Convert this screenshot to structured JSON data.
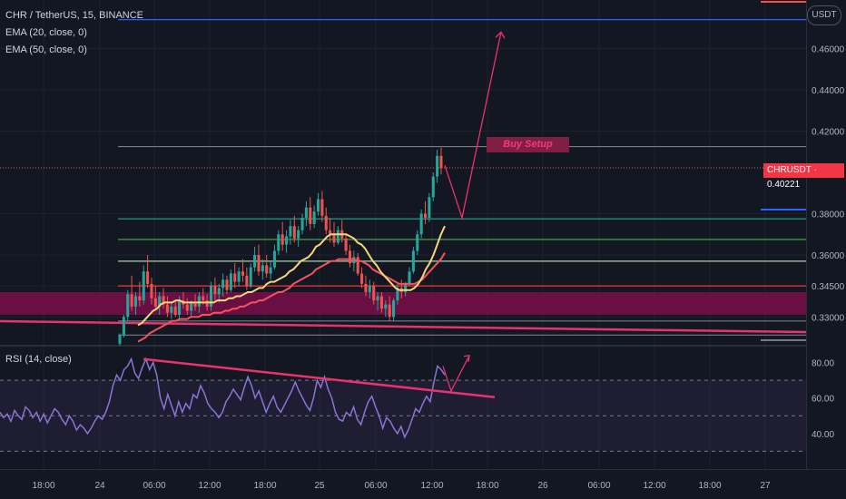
{
  "header": {
    "symbol_line": "CHR / TetherUS, 15, BINANCE",
    "ema20": "EMA (20, close, 0)",
    "ema50": "EMA (50, close, 0)",
    "rsi_label": "RSI (14, close)",
    "currency": "USDT",
    "price_tag": "CHRUSDT · 0.40221",
    "annotation": "Buy Setup"
  },
  "colors": {
    "background": "#131722",
    "bull": "#26a69a",
    "bear": "#ef5350",
    "ema20": "#f7d67a",
    "ema50": "#f7525f",
    "rsi": "#8a74d6",
    "annotation": "#e8336e",
    "level_blue": "#2962ff",
    "level_teal": "#22ab94",
    "level_green": "#4caf50",
    "level_red": "#f23645",
    "zone": "#880e4f"
  },
  "chart_data": [
    {
      "type": "candlestick",
      "title": "CHR / TetherUS, 15, BINANCE",
      "ylim": [
        0.3165,
        0.4835
      ],
      "y_ticks": [
        "0.46000",
        "0.44000",
        "0.42000",
        "0.40221",
        "0.38000",
        "0.36000",
        "0.34500",
        "0.33000"
      ],
      "x_ticks": [
        "18:00",
        "24",
        "06:00",
        "12:00",
        "18:00",
        "25",
        "06:00",
        "12:00",
        "18:00",
        "26",
        "06:00",
        "12:00",
        "18:00",
        "27"
      ],
      "last_price": 0.40221,
      "candles_ohlc": [
        [
          0.317,
          0.322,
          0.316,
          0.321
        ],
        [
          0.321,
          0.331,
          0.32,
          0.33
        ],
        [
          0.33,
          0.343,
          0.328,
          0.341
        ],
        [
          0.341,
          0.35,
          0.333,
          0.335
        ],
        [
          0.335,
          0.342,
          0.331,
          0.34
        ],
        [
          0.34,
          0.347,
          0.335,
          0.338
        ],
        [
          0.338,
          0.355,
          0.336,
          0.352
        ],
        [
          0.352,
          0.36,
          0.344,
          0.346
        ],
        [
          0.346,
          0.349,
          0.336,
          0.339
        ],
        [
          0.339,
          0.345,
          0.333,
          0.335
        ],
        [
          0.335,
          0.342,
          0.331,
          0.34
        ],
        [
          0.34,
          0.344,
          0.334,
          0.336
        ],
        [
          0.336,
          0.34,
          0.33,
          0.332
        ],
        [
          0.332,
          0.337,
          0.329,
          0.335
        ],
        [
          0.335,
          0.338,
          0.33,
          0.331
        ],
        [
          0.331,
          0.34,
          0.329,
          0.338
        ],
        [
          0.338,
          0.342,
          0.334,
          0.336
        ],
        [
          0.336,
          0.339,
          0.331,
          0.333
        ],
        [
          0.333,
          0.338,
          0.33,
          0.337
        ],
        [
          0.337,
          0.341,
          0.333,
          0.335
        ],
        [
          0.335,
          0.342,
          0.332,
          0.34
        ],
        [
          0.34,
          0.344,
          0.336,
          0.338
        ],
        [
          0.338,
          0.341,
          0.333,
          0.335
        ],
        [
          0.335,
          0.347,
          0.333,
          0.345
        ],
        [
          0.345,
          0.349,
          0.338,
          0.341
        ],
        [
          0.341,
          0.346,
          0.337,
          0.344
        ],
        [
          0.344,
          0.351,
          0.34,
          0.348
        ],
        [
          0.348,
          0.35,
          0.341,
          0.343
        ],
        [
          0.343,
          0.353,
          0.342,
          0.351
        ],
        [
          0.351,
          0.356,
          0.344,
          0.347
        ],
        [
          0.347,
          0.354,
          0.345,
          0.352
        ],
        [
          0.352,
          0.358,
          0.347,
          0.35
        ],
        [
          0.35,
          0.354,
          0.343,
          0.345
        ],
        [
          0.345,
          0.356,
          0.344,
          0.354
        ],
        [
          0.354,
          0.364,
          0.352,
          0.36
        ],
        [
          0.36,
          0.365,
          0.35,
          0.352
        ],
        [
          0.352,
          0.358,
          0.348,
          0.355
        ],
        [
          0.355,
          0.36,
          0.349,
          0.351
        ],
        [
          0.351,
          0.357,
          0.348,
          0.354
        ],
        [
          0.354,
          0.365,
          0.353,
          0.362
        ],
        [
          0.362,
          0.372,
          0.36,
          0.37
        ],
        [
          0.37,
          0.376,
          0.362,
          0.365
        ],
        [
          0.365,
          0.372,
          0.361,
          0.369
        ],
        [
          0.369,
          0.377,
          0.365,
          0.374
        ],
        [
          0.374,
          0.379,
          0.366,
          0.368
        ],
        [
          0.368,
          0.374,
          0.364,
          0.372
        ],
        [
          0.372,
          0.38,
          0.37,
          0.378
        ],
        [
          0.378,
          0.386,
          0.374,
          0.383
        ],
        [
          0.383,
          0.388,
          0.372,
          0.375
        ],
        [
          0.375,
          0.384,
          0.373,
          0.381
        ],
        [
          0.381,
          0.39,
          0.379,
          0.387
        ],
        [
          0.387,
          0.391,
          0.376,
          0.379
        ],
        [
          0.379,
          0.383,
          0.37,
          0.372
        ],
        [
          0.372,
          0.378,
          0.366,
          0.37
        ],
        [
          0.37,
          0.376,
          0.364,
          0.366
        ],
        [
          0.366,
          0.374,
          0.365,
          0.372
        ],
        [
          0.372,
          0.377,
          0.366,
          0.368
        ],
        [
          0.368,
          0.37,
          0.36,
          0.362
        ],
        [
          0.362,
          0.365,
          0.354,
          0.356
        ],
        [
          0.356,
          0.362,
          0.352,
          0.359
        ],
        [
          0.359,
          0.361,
          0.35,
          0.351
        ],
        [
          0.351,
          0.354,
          0.344,
          0.346
        ],
        [
          0.346,
          0.35,
          0.34,
          0.342
        ],
        [
          0.342,
          0.348,
          0.339,
          0.345
        ],
        [
          0.345,
          0.347,
          0.336,
          0.338
        ],
        [
          0.338,
          0.342,
          0.333,
          0.34
        ],
        [
          0.34,
          0.342,
          0.332,
          0.334
        ],
        [
          0.334,
          0.338,
          0.33,
          0.336
        ],
        [
          0.336,
          0.34,
          0.328,
          0.33
        ],
        [
          0.33,
          0.339,
          0.328,
          0.338
        ],
        [
          0.338,
          0.346,
          0.336,
          0.344
        ],
        [
          0.344,
          0.348,
          0.339,
          0.342
        ],
        [
          0.342,
          0.347,
          0.34,
          0.346
        ],
        [
          0.346,
          0.354,
          0.345,
          0.352
        ],
        [
          0.352,
          0.364,
          0.351,
          0.362
        ],
        [
          0.362,
          0.372,
          0.36,
          0.37
        ],
        [
          0.37,
          0.382,
          0.368,
          0.38
        ],
        [
          0.38,
          0.386,
          0.375,
          0.378
        ],
        [
          0.378,
          0.39,
          0.376,
          0.388
        ],
        [
          0.388,
          0.4,
          0.386,
          0.398
        ],
        [
          0.398,
          0.411,
          0.395,
          0.408
        ],
        [
          0.408,
          0.412,
          0.399,
          0.402
        ]
      ],
      "ema20": [
        0.326,
        0.327,
        0.329,
        0.331,
        0.333,
        0.334,
        0.336,
        0.337,
        0.337,
        0.337,
        0.338,
        0.338,
        0.337,
        0.337,
        0.337,
        0.337,
        0.337,
        0.337,
        0.337,
        0.337,
        0.337,
        0.338,
        0.338,
        0.338,
        0.339,
        0.339,
        0.34,
        0.34,
        0.341,
        0.342,
        0.342,
        0.343,
        0.344,
        0.344,
        0.346,
        0.347,
        0.347,
        0.348,
        0.349,
        0.35,
        0.352,
        0.353,
        0.355,
        0.357,
        0.358,
        0.359,
        0.361,
        0.364,
        0.365,
        0.367,
        0.369,
        0.37,
        0.37,
        0.37,
        0.37,
        0.37,
        0.369,
        0.368,
        0.366,
        0.365,
        0.363,
        0.36,
        0.357,
        0.355,
        0.352,
        0.35,
        0.348,
        0.346,
        0.344,
        0.343,
        0.343,
        0.343,
        0.343,
        0.344,
        0.346,
        0.349,
        0.353,
        0.356,
        0.36,
        0.365,
        0.37,
        0.374
      ],
      "ema50": [
        0.318,
        0.319,
        0.32,
        0.322,
        0.323,
        0.324,
        0.325,
        0.326,
        0.327,
        0.328,
        0.328,
        0.329,
        0.329,
        0.329,
        0.33,
        0.33,
        0.33,
        0.331,
        0.331,
        0.331,
        0.332,
        0.332,
        0.332,
        0.333,
        0.333,
        0.334,
        0.334,
        0.335,
        0.335,
        0.336,
        0.337,
        0.337,
        0.338,
        0.338,
        0.339,
        0.34,
        0.341,
        0.342,
        0.342,
        0.343,
        0.344,
        0.346,
        0.347,
        0.348,
        0.349,
        0.35,
        0.351,
        0.353,
        0.354,
        0.355,
        0.356,
        0.357,
        0.357,
        0.358,
        0.358,
        0.358,
        0.358,
        0.358,
        0.357,
        0.357,
        0.356,
        0.355,
        0.353,
        0.352,
        0.351,
        0.35,
        0.349,
        0.348,
        0.347,
        0.346,
        0.346,
        0.346,
        0.346,
        0.346,
        0.347,
        0.348,
        0.35,
        0.352,
        0.354,
        0.356,
        0.358,
        0.361
      ],
      "horizontal_levels": [
        0.474,
        0.4125,
        0.3775,
        0.3675,
        0.357,
        0.345,
        0.328,
        0.3212
      ],
      "demand_zone": [
        0.331,
        0.342
      ],
      "projection_path": [
        [
          0.4035,
          0.378
        ],
        [
          0.378,
          0.468
        ]
      ]
    },
    {
      "type": "line",
      "title": "RSI (14, close)",
      "ylim": [
        20,
        89
      ],
      "y_ticks": [
        80,
        60,
        40
      ],
      "bands": [
        30,
        50,
        70
      ],
      "band_fill": [
        30,
        70
      ],
      "values": [
        52,
        49,
        51,
        47,
        53,
        50,
        48,
        55,
        53,
        49,
        52,
        47,
        51,
        46,
        50,
        54,
        52,
        48,
        45,
        50,
        47,
        42,
        45,
        43,
        40,
        43,
        47,
        50,
        48,
        52,
        58,
        67,
        73,
        70,
        76,
        78,
        82,
        74,
        71,
        77,
        82,
        76,
        80,
        73,
        60,
        54,
        62,
        56,
        50,
        58,
        52,
        57,
        54,
        62,
        60,
        67,
        63,
        57,
        54,
        52,
        49,
        52,
        58,
        61,
        65,
        62,
        59,
        66,
        72,
        67,
        60,
        64,
        58,
        52,
        57,
        61,
        55,
        52,
        56,
        60,
        64,
        69,
        64,
        60,
        56,
        53,
        60,
        70,
        66,
        72,
        65,
        60,
        52,
        48,
        47,
        52,
        50,
        55,
        48,
        45,
        52,
        58,
        61,
        55,
        50,
        43,
        49,
        47,
        43,
        40,
        44,
        38,
        42,
        48,
        54,
        52,
        57,
        61,
        58,
        69,
        78,
        76,
        73
      ]
    }
  ]
}
